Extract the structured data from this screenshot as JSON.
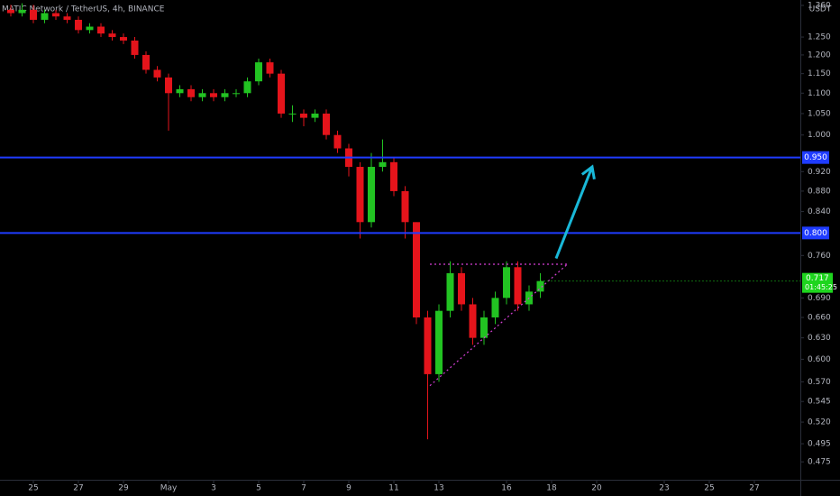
{
  "chart_data": {
    "type": "candlestick",
    "title": "MATIC Network / TetherUS, 4h, BINANCE",
    "y_unit": "USDT",
    "log_scale": true,
    "grid": false,
    "up_color": "#22c322",
    "down_color": "#e5141b",
    "x": [
      -1,
      -0.5,
      0,
      0.5,
      1,
      1.5,
      2,
      2.5,
      3,
      3.5,
      4,
      4.5,
      5,
      5.5,
      6,
      6.5,
      7,
      7.5,
      8,
      8.5,
      9,
      9.5,
      10,
      10.5,
      11,
      11.5,
      12,
      12.5,
      13,
      13.5,
      14,
      14.5,
      15,
      15.5,
      16,
      16.5,
      17,
      17.5,
      18,
      18.5,
      19,
      19.5,
      20,
      20.5,
      21,
      21.5,
      22,
      22.5
    ],
    "open": [
      1.33,
      1.32,
      1.33,
      1.3,
      1.32,
      1.31,
      1.3,
      1.27,
      1.28,
      1.26,
      1.25,
      1.24,
      1.2,
      1.16,
      1.14,
      1.1,
      1.11,
      1.09,
      1.1,
      1.09,
      1.1,
      1.1,
      1.13,
      1.18,
      1.15,
      1.05,
      1.05,
      1.04,
      1.05,
      1.0,
      0.97,
      0.93,
      0.82,
      0.93,
      0.94,
      0.88,
      0.82,
      0.66,
      0.58,
      0.67,
      0.73,
      0.68,
      0.63,
      0.66,
      0.69,
      0.74,
      0.68,
      0.7
    ],
    "high": [
      1.345,
      1.35,
      1.345,
      1.33,
      1.33,
      1.32,
      1.31,
      1.29,
      1.29,
      1.27,
      1.26,
      1.25,
      1.21,
      1.17,
      1.15,
      1.12,
      1.12,
      1.11,
      1.11,
      1.11,
      1.11,
      1.14,
      1.19,
      1.19,
      1.16,
      1.07,
      1.06,
      1.06,
      1.06,
      1.01,
      0.98,
      0.94,
      0.96,
      0.99,
      0.95,
      0.89,
      0.82,
      0.67,
      0.68,
      0.75,
      0.74,
      0.69,
      0.67,
      0.7,
      0.75,
      0.75,
      0.71,
      0.73
    ],
    "low": [
      1.31,
      1.31,
      1.29,
      1.29,
      1.3,
      1.29,
      1.26,
      1.26,
      1.25,
      1.24,
      1.23,
      1.19,
      1.15,
      1.13,
      1.01,
      1.09,
      1.08,
      1.08,
      1.08,
      1.08,
      1.09,
      1.09,
      1.12,
      1.14,
      1.04,
      1.03,
      1.02,
      1.03,
      0.99,
      0.96,
      0.91,
      0.79,
      0.81,
      0.92,
      0.87,
      0.79,
      0.65,
      0.5,
      0.57,
      0.66,
      0.67,
      0.62,
      0.62,
      0.65,
      0.68,
      0.67,
      0.67,
      0.69
    ],
    "close": [
      1.32,
      1.33,
      1.3,
      1.32,
      1.31,
      1.3,
      1.27,
      1.28,
      1.26,
      1.25,
      1.24,
      1.2,
      1.16,
      1.14,
      1.1,
      1.11,
      1.09,
      1.1,
      1.09,
      1.1,
      1.1,
      1.13,
      1.18,
      1.15,
      1.05,
      1.05,
      1.04,
      1.05,
      1.0,
      0.97,
      0.93,
      0.82,
      0.93,
      0.94,
      0.88,
      0.82,
      0.66,
      0.58,
      0.67,
      0.73,
      0.68,
      0.63,
      0.66,
      0.69,
      0.74,
      0.68,
      0.7,
      0.717
    ],
    "xlim": [
      -1.48,
      34.04
    ],
    "xticks": [
      {
        "value": 0,
        "label": "25"
      },
      {
        "value": 2,
        "label": "27"
      },
      {
        "value": 4,
        "label": "29"
      },
      {
        "value": 6,
        "label": "May"
      },
      {
        "value": 8,
        "label": "3"
      },
      {
        "value": 10,
        "label": "5"
      },
      {
        "value": 12,
        "label": "7"
      },
      {
        "value": 14,
        "label": "9"
      },
      {
        "value": 16,
        "label": "11"
      },
      {
        "value": 18,
        "label": "13"
      },
      {
        "value": 21,
        "label": "16"
      },
      {
        "value": 23,
        "label": "18"
      },
      {
        "value": 25,
        "label": "20"
      },
      {
        "value": 28,
        "label": "23"
      },
      {
        "value": 30,
        "label": "25"
      },
      {
        "value": 32,
        "label": "27"
      }
    ],
    "ylim": [
      0.456,
      1.36
    ],
    "yticks": [
      {
        "value": 1.36,
        "label": "1.360"
      },
      {
        "value": 1.25,
        "label": "1.250"
      },
      {
        "value": 1.2,
        "label": "1.200"
      },
      {
        "value": 1.15,
        "label": "1.150"
      },
      {
        "value": 1.1,
        "label": "1.100"
      },
      {
        "value": 1.05,
        "label": "1.050"
      },
      {
        "value": 1,
        "label": "1.000"
      },
      {
        "value": 0.92,
        "label": "0.920"
      },
      {
        "value": 0.88,
        "label": "0.880"
      },
      {
        "value": 0.84,
        "label": "0.840"
      },
      {
        "value": 0.76,
        "label": "0.760"
      },
      {
        "value": 0.69,
        "label": "0.690"
      },
      {
        "value": 0.66,
        "label": "0.660"
      },
      {
        "value": 0.63,
        "label": "0.630"
      },
      {
        "value": 0.6,
        "label": "0.600"
      },
      {
        "value": 0.57,
        "label": "0.570"
      },
      {
        "value": 0.545,
        "label": "0.545"
      },
      {
        "value": 0.52,
        "label": "0.520"
      },
      {
        "value": 0.495,
        "label": "0.495"
      },
      {
        "value": 0.475,
        "label": "0.475"
      }
    ],
    "hlines": [
      {
        "value": 0.95,
        "label": "0.950",
        "color": "#1f3cff"
      },
      {
        "value": 0.8,
        "label": "0.800",
        "color": "#1f3cff"
      }
    ],
    "last_price": {
      "value": 0.717,
      "label": "0.717",
      "countdown": "01:45:25",
      "color": "#1ed51e"
    },
    "trendlines": [
      {
        "x": [
          17.6,
          23.7
        ],
        "y": [
          0.745,
          0.745
        ],
        "color": "#d63fd6",
        "dashed": true
      },
      {
        "x": [
          17.6,
          23.7
        ],
        "y": [
          0.565,
          0.745
        ],
        "color": "#d63fd6",
        "dashed": true
      },
      {
        "x": [
          23.2,
          24.8
        ],
        "y": [
          0.755,
          0.93
        ],
        "color": "#19b8d8",
        "dashed": false,
        "arrow": true
      }
    ]
  }
}
